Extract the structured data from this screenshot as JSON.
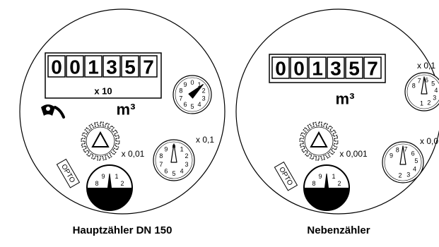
{
  "meters": [
    {
      "id": "main",
      "caption": "Hauptzähler DN 150",
      "digits": [
        "0",
        "0",
        "1",
        "3",
        "5",
        "7"
      ],
      "multiplier_label": "x 10",
      "unit": "m³",
      "dial_large": {
        "numbers": [
          "0",
          "1",
          "2",
          "3",
          "4",
          "5",
          "6",
          "7",
          "8",
          "9"
        ],
        "pointer_value": 1.3
      },
      "dial_small": {
        "label": "x 0,1",
        "numbers": [
          "0",
          "1",
          "2",
          "3",
          "4",
          "5",
          "6",
          "7",
          "8",
          "9"
        ],
        "pointer_value": 0
      },
      "star_wheel_label": "x 0,01",
      "half_dial_numbers": [
        "8",
        "9",
        "1",
        "2"
      ],
      "opto_label": "OPTO",
      "has_magnet_icon": true
    },
    {
      "id": "sub",
      "caption": "Nebenzähler",
      "digits": [
        "0",
        "0",
        "1",
        "3",
        "5",
        "7"
      ],
      "multiplier_label": "",
      "unit": "m³",
      "dial_large": {
        "label": "x 0,1",
        "numbers": [
          "8",
          "7",
          "6",
          "5",
          "4",
          "3",
          "2",
          "1"
        ],
        "pointer_value": 0
      },
      "dial_small": {
        "label": "x 0,0",
        "numbers": [
          "9",
          "8",
          "7",
          "6",
          "5",
          "4",
          "3",
          "2"
        ],
        "pointer_value": 0
      },
      "star_wheel_label": "x 0,001",
      "half_dial_numbers": [
        "8",
        "9",
        "1",
        "2"
      ],
      "opto_label": "OPTO",
      "has_magnet_icon": false
    }
  ]
}
